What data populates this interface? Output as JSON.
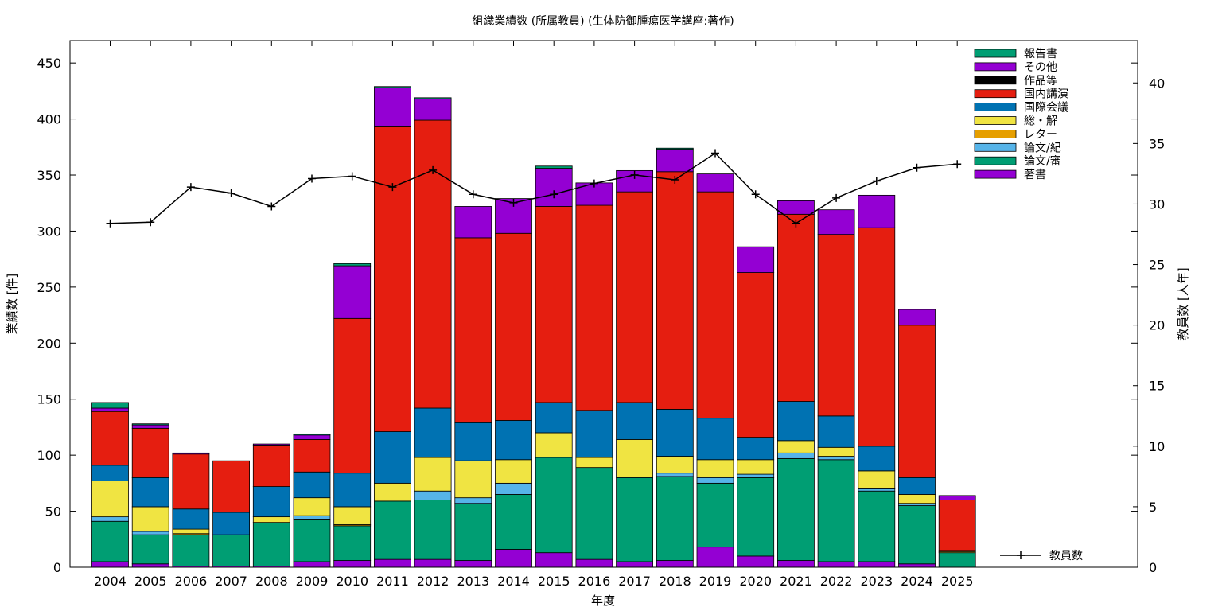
{
  "chart_data": {
    "type": "bar",
    "stacked": true,
    "title": "組織業績数 (所属教員) (生体防御腫瘍医学講座:著作)",
    "xlabel": "年度",
    "ylabel": "業績数 [件]",
    "y2label": "教員数 [人年]",
    "ylim": [
      0,
      470
    ],
    "y2lim": [
      0,
      43.5
    ],
    "yticks": [
      0,
      50,
      100,
      150,
      200,
      250,
      300,
      350,
      400,
      450
    ],
    "y2ticks": [
      0,
      5,
      10,
      15,
      20,
      25,
      30,
      35,
      40
    ],
    "legend_position": "top-right",
    "grid": false,
    "categories": [
      "2004",
      "2005",
      "2006",
      "2007",
      "2008",
      "2009",
      "2010",
      "2011",
      "2012",
      "2013",
      "2014",
      "2015",
      "2016",
      "2017",
      "2018",
      "2019",
      "2020",
      "2021",
      "2022",
      "2023",
      "2024",
      "2025"
    ],
    "series": [
      {
        "name": "著書",
        "color": "#9400d3",
        "values": [
          5,
          3,
          1,
          1,
          1,
          5,
          6,
          7,
          7,
          6,
          16,
          13,
          7,
          5,
          6,
          18,
          10,
          6,
          5,
          5,
          3,
          0
        ]
      },
      {
        "name": "論文/審",
        "color": "#009e73",
        "values": [
          36,
          26,
          28,
          28,
          39,
          38,
          31,
          52,
          53,
          51,
          49,
          85,
          82,
          75,
          75,
          57,
          70,
          91,
          91,
          63,
          52,
          13
        ]
      },
      {
        "name": "論文/紀",
        "color": "#56b4e9",
        "values": [
          4,
          3,
          0,
          0,
          0,
          3,
          0,
          0,
          8,
          5,
          10,
          0,
          0,
          0,
          3,
          5,
          3,
          5,
          3,
          2,
          2,
          0
        ]
      },
      {
        "name": "レター",
        "color": "#e69f00",
        "values": [
          0,
          0,
          1,
          0,
          0,
          0,
          1,
          0,
          0,
          0,
          0,
          0,
          0,
          0,
          0,
          0,
          0,
          0,
          0,
          0,
          0,
          0
        ]
      },
      {
        "name": "総・解",
        "color": "#f0e442",
        "values": [
          32,
          22,
          4,
          0,
          5,
          16,
          16,
          16,
          30,
          33,
          21,
          22,
          9,
          34,
          15,
          16,
          13,
          11,
          8,
          16,
          8,
          1
        ]
      },
      {
        "name": "国際会議",
        "color": "#0072b2",
        "values": [
          14,
          26,
          18,
          20,
          27,
          23,
          30,
          46,
          44,
          34,
          35,
          27,
          42,
          33,
          42,
          37,
          20,
          35,
          28,
          22,
          15,
          1
        ]
      },
      {
        "name": "国内講演",
        "color": "#e51e10",
        "values": [
          48,
          44,
          49,
          46,
          37,
          29,
          138,
          272,
          257,
          165,
          167,
          175,
          183,
          188,
          212,
          202,
          147,
          167,
          162,
          195,
          136,
          45
        ]
      },
      {
        "name": "作品等",
        "color": "#000000",
        "values": [
          0,
          0,
          0,
          0,
          0,
          0,
          0,
          0,
          0,
          0,
          0,
          0,
          0,
          0,
          0,
          0,
          0,
          0,
          0,
          0,
          0,
          0
        ]
      },
      {
        "name": "その他",
        "color": "#9400d3",
        "values": [
          3,
          3,
          1,
          0,
          1,
          4,
          47,
          35,
          19,
          28,
          31,
          34,
          20,
          19,
          20,
          16,
          23,
          12,
          22,
          29,
          14,
          4
        ]
      },
      {
        "name": "報告書",
        "color": "#009e73",
        "values": [
          5,
          1,
          0,
          0,
          0,
          1,
          2,
          1,
          1,
          0,
          0,
          2,
          0,
          0,
          1,
          0,
          0,
          0,
          0,
          0,
          0,
          0
        ]
      }
    ],
    "line_series": {
      "name": "教員数",
      "color": "#000000",
      "values": [
        28.4,
        28.5,
        31.4,
        30.9,
        29.8,
        32.1,
        32.3,
        31.4,
        32.8,
        30.8,
        30.1,
        30.8,
        31.7,
        32.4,
        32.0,
        34.2,
        30.8,
        28.4,
        30.5,
        31.9,
        33.0,
        33.3
      ]
    }
  }
}
